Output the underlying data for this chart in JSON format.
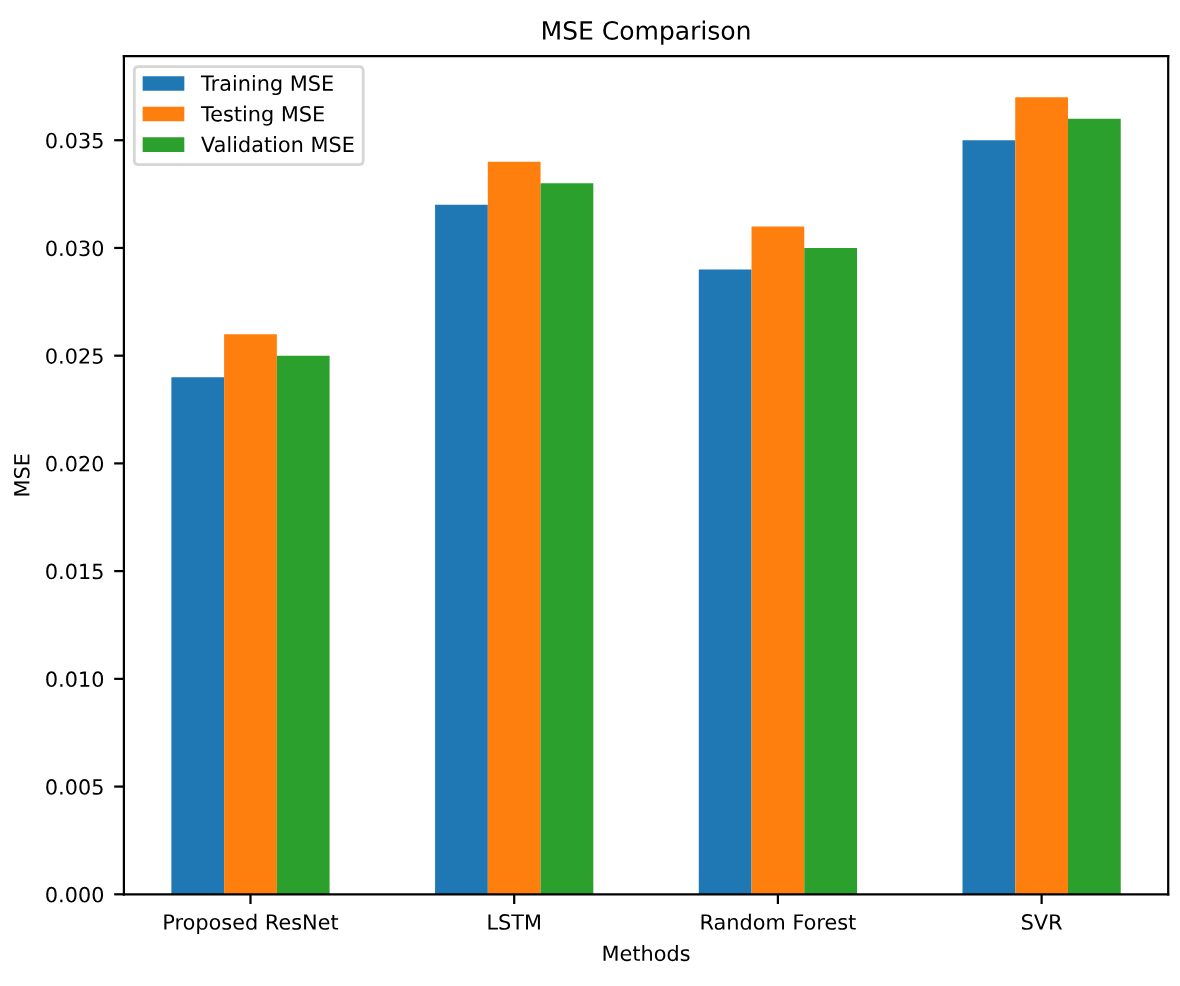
{
  "chart_data": {
    "type": "bar",
    "title": "MSE Comparison",
    "xlabel": "Methods",
    "ylabel": "MSE",
    "categories": [
      "Proposed ResNet",
      "LSTM",
      "Random Forest",
      "SVR"
    ],
    "series": [
      {
        "name": "Training MSE",
        "color": "#1f77b4",
        "values": [
          0.024,
          0.032,
          0.029,
          0.035
        ]
      },
      {
        "name": "Testing MSE",
        "color": "#ff7f0e",
        "values": [
          0.026,
          0.034,
          0.031,
          0.037
        ]
      },
      {
        "name": "Validation MSE",
        "color": "#2ca02c",
        "values": [
          0.025,
          0.033,
          0.03,
          0.036
        ]
      }
    ],
    "ylim": [
      0,
      0.0389
    ],
    "yticks": [
      {
        "value": 0,
        "label": "0.000"
      },
      {
        "value": 0.005,
        "label": "0.005"
      },
      {
        "value": 0.01,
        "label": "0.010"
      },
      {
        "value": 0.015,
        "label": "0.015"
      },
      {
        "value": 0.02,
        "label": "0.020"
      },
      {
        "value": 0.025,
        "label": "0.025"
      },
      {
        "value": 0.03,
        "label": "0.030"
      },
      {
        "value": 0.035,
        "label": "0.035"
      }
    ],
    "legend": "top left"
  }
}
